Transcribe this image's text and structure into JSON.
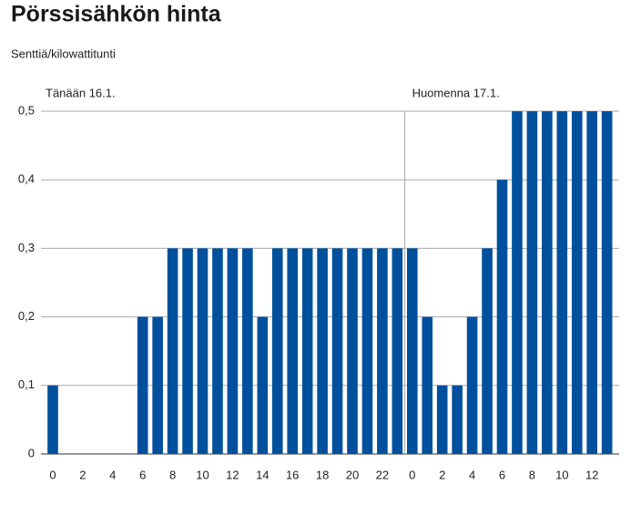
{
  "chart_data": {
    "type": "bar",
    "title": "Pörssisähkön hinta",
    "subtitle": "Senttiä/kilowattitunti",
    "annotations": [
      "Tänään 16.1.",
      "Huomenna 17.1."
    ],
    "categories": [
      "0",
      null,
      "2",
      null,
      "4",
      null,
      "6",
      null,
      "8",
      null,
      "10",
      null,
      "12",
      null,
      "14",
      null,
      "16",
      null,
      "18",
      null,
      "20",
      null,
      "22",
      null,
      "0",
      null,
      "2",
      null,
      "4",
      null,
      "6",
      null,
      "8",
      null,
      "10",
      null,
      "12",
      null
    ],
    "values": [
      0.1,
      0,
      0,
      0,
      0,
      0,
      0.2,
      0.2,
      0.3,
      0.3,
      0.3,
      0.3,
      0.3,
      0.3,
      0.2,
      0.3,
      0.3,
      0.3,
      0.3,
      0.3,
      0.3,
      0.3,
      0.3,
      0.3,
      0.3,
      0.2,
      0.1,
      0.1,
      0.2,
      0.3,
      0.4,
      0.5,
      0.5,
      0.5,
      0.5,
      0.5,
      0.5,
      0.5
    ],
    "color": "#00509e",
    "ylim": [
      0,
      0.5
    ],
    "yticks": [
      0,
      {
        "value": 0.1,
        "label": "0,1"
      },
      {
        "value": 0.2,
        "label": "0,2"
      },
      {
        "value": 0.3,
        "label": "0,3"
      },
      {
        "value": 0.4,
        "label": "0,4"
      },
      {
        "value": 0.5,
        "label": "0,5"
      }
    ],
    "grid": true
  }
}
